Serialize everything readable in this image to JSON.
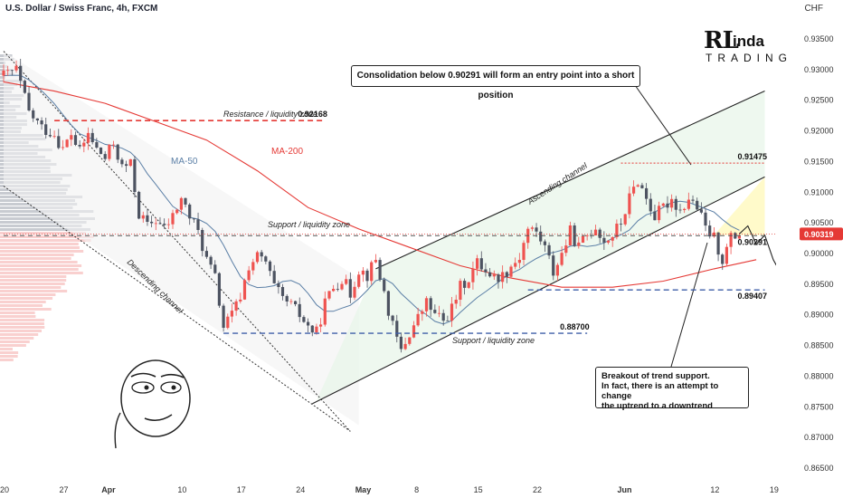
{
  "header": {
    "title": "U.S. Dollar / Swiss Franc, 4h, FXCM",
    "currency": "CHF"
  },
  "logo": {
    "text_big": "RL",
    "text_top": "inda",
    "text_bottom": "TRADING"
  },
  "colors": {
    "bull": "#ef5350",
    "bear": "#4d5361",
    "ma200": "#e53935",
    "ma50": "#5b7fa6",
    "resistance": "#e53935",
    "support": "#3f5fa8",
    "channel_fill": "#e8f5e9",
    "price_tag": "#e53935"
  },
  "chart_data": {
    "type": "candlestick",
    "symbol": "USDCHF",
    "timeframe": "4h",
    "ylim": [
      0.863,
      0.937
    ],
    "y_ticks": [
      "0.93500",
      "0.93000",
      "0.92500",
      "0.92000",
      "0.91500",
      "0.91000",
      "0.90500",
      "0.90000",
      "0.89500",
      "0.89000",
      "0.88500",
      "0.88000",
      "0.87500",
      "0.87000",
      "0.86500"
    ],
    "x_ticks": [
      {
        "label": "20",
        "day": 0
      },
      {
        "label": "27",
        "day": 7
      },
      {
        "label": "Apr",
        "day": 12
      },
      {
        "label": "10",
        "day": 21
      },
      {
        "label": "17",
        "day": 28
      },
      {
        "label": "24",
        "day": 35
      },
      {
        "label": "May",
        "day": 42
      },
      {
        "label": "8",
        "day": 49
      },
      {
        "label": "15",
        "day": 56
      },
      {
        "label": "22",
        "day": 63
      },
      {
        "label": "Jun",
        "day": 73
      },
      {
        "label": "12",
        "day": 84
      },
      {
        "label": "19",
        "day": 91
      }
    ],
    "last_price": "0.90319",
    "close_path": [
      [
        0,
        0.929
      ],
      [
        1.5,
        0.93
      ],
      [
        3,
        0.923
      ],
      [
        4.5,
        0.9205
      ],
      [
        6,
        0.9195
      ],
      [
        7,
        0.917
      ],
      [
        8,
        0.9195
      ],
      [
        9,
        0.9165
      ],
      [
        10,
        0.9195
      ],
      [
        11,
        0.917
      ],
      [
        12,
        0.9155
      ],
      [
        13,
        0.918
      ],
      [
        14,
        0.914
      ],
      [
        15,
        0.9145
      ],
      [
        16,
        0.9065
      ],
      [
        17,
        0.9045
      ],
      [
        18,
        0.9055
      ],
      [
        19,
        0.904
      ],
      [
        20,
        0.906
      ],
      [
        21,
        0.909
      ],
      [
        22,
        0.906
      ],
      [
        23,
        0.9035
      ],
      [
        24,
        0.899
      ],
      [
        25,
        0.896
      ],
      [
        26,
        0.888
      ],
      [
        27,
        0.89
      ],
      [
        28,
        0.893
      ],
      [
        29,
        0.898
      ],
      [
        30,
        0.8995
      ],
      [
        31,
        0.8985
      ],
      [
        32,
        0.8945
      ],
      [
        33,
        0.8925
      ],
      [
        34,
        0.8915
      ],
      [
        35,
        0.89
      ],
      [
        36,
        0.888
      ],
      [
        37,
        0.887
      ],
      [
        38,
        0.892
      ],
      [
        39,
        0.8945
      ],
      [
        40,
        0.896
      ],
      [
        41,
        0.8935
      ],
      [
        42,
        0.8975
      ],
      [
        43,
        0.8965
      ],
      [
        44,
        0.899
      ],
      [
        45,
        0.8935
      ],
      [
        46,
        0.888
      ],
      [
        47,
        0.884
      ],
      [
        48,
        0.887
      ],
      [
        49,
        0.8895
      ],
      [
        50,
        0.892
      ],
      [
        51,
        0.89
      ],
      [
        52,
        0.889
      ],
      [
        53,
        0.891
      ],
      [
        54,
        0.8945
      ],
      [
        55,
        0.896
      ],
      [
        56,
        0.8985
      ],
      [
        57,
        0.8975
      ],
      [
        58,
        0.896
      ],
      [
        59,
        0.8965
      ],
      [
        60,
        0.898
      ],
      [
        61,
        0.8995
      ],
      [
        62,
        0.904
      ],
      [
        63,
        0.9035
      ],
      [
        64,
        0.901
      ],
      [
        65,
        0.897
      ],
      [
        66,
        0.9
      ],
      [
        67,
        0.9035
      ],
      [
        68,
        0.901
      ],
      [
        69,
        0.903
      ],
      [
        70,
        0.9045
      ],
      [
        71,
        0.902
      ],
      [
        72,
        0.903
      ],
      [
        73,
        0.905
      ],
      [
        74,
        0.909
      ],
      [
        75,
        0.912
      ],
      [
        76,
        0.909
      ],
      [
        77,
        0.906
      ],
      [
        78,
        0.9075
      ],
      [
        79,
        0.909
      ],
      [
        80,
        0.907
      ],
      [
        81,
        0.909
      ],
      [
        82,
        0.9075
      ],
      [
        83,
        0.904
      ],
      [
        84,
        0.9025
      ],
      [
        85,
        0.899
      ],
      [
        86,
        0.9025
      ],
      [
        87,
        0.9032
      ]
    ],
    "projection_path": [
      [
        87,
        0.9032
      ],
      [
        88,
        0.9045
      ],
      [
        89,
        0.9015
      ],
      [
        90,
        0.903
      ],
      [
        91,
        0.899
      ],
      [
        92,
        0.8965
      ]
    ],
    "levels": [
      {
        "name": "resistance",
        "value": 0.92168,
        "label": "0.92168",
        "caption": "Resistance / liquidity zone"
      },
      {
        "name": "support-upper",
        "value": 0.90291,
        "label": "0.90291",
        "caption": "Support / liquidity zone"
      },
      {
        "name": "support-lower",
        "value": 0.887,
        "label": "0.88700",
        "caption": "Support / liquidity zone"
      },
      {
        "name": "target",
        "value": 0.89407,
        "label": "0.89407",
        "caption": ""
      },
      {
        "name": "high",
        "value": 0.91475,
        "label": "0.91475",
        "caption": ""
      }
    ],
    "labels": {
      "ma200": "MA-200",
      "ma50": "MA-50",
      "ascending": "Ascending channel",
      "descending": "Descending channel"
    },
    "annotations": {
      "consolidation": "Consolidation below 0.90291 will form an entry point into a short position",
      "breakout_line1": "Breakout of trend support.",
      "breakout_line2": "In fact, there is an attempt to change",
      "breakout_line3": "the uptrend to a downtrend"
    }
  }
}
